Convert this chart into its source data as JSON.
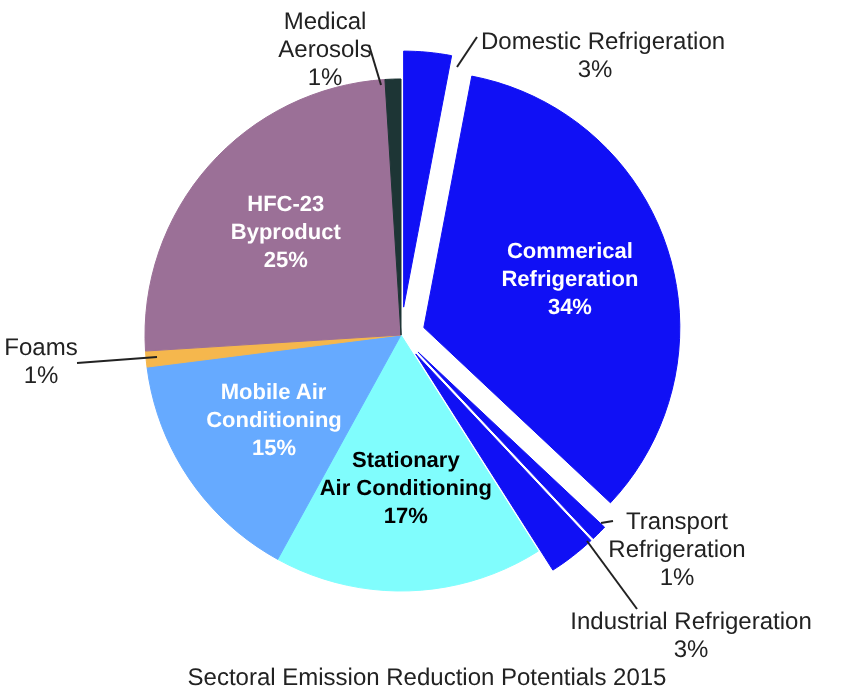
{
  "chart_data": {
    "type": "pie",
    "title": "Sectoral Emission Reduction Potentials 2015",
    "categories": [
      "Domestic Refrigeration",
      "Commerical Refrigeration",
      "Transport Refrigeration",
      "Industrial Refrigeration",
      "Stationary Air Conditioning",
      "Mobile Air Conditioning",
      "Foams",
      "HFC-23 Byproduct",
      "Medical Aerosols"
    ],
    "values": [
      3,
      34,
      1,
      3,
      17,
      15,
      1,
      25,
      1
    ],
    "value_labels": [
      "3%",
      "34%",
      "1%",
      "3%",
      "17%",
      "15%",
      "1%",
      "25%",
      "1%"
    ],
    "colors": [
      "#1010f5",
      "#1010f5",
      "#1010f5",
      "#1010f5",
      "#80fdfd",
      "#66aaff",
      "#f5b74d",
      "#9b7097",
      "#1d3535"
    ]
  }
}
